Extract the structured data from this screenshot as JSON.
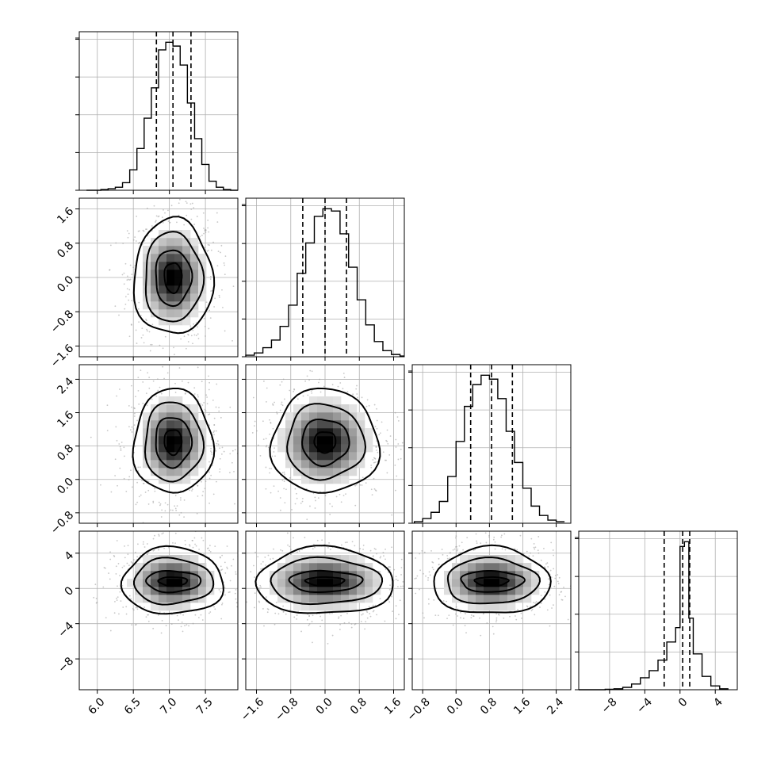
{
  "chart_data": {
    "type": "corner",
    "parameters": [
      {
        "range": [
          5.75,
          7.95
        ],
        "ticks": [
          6.0,
          6.5,
          7.0,
          7.5
        ],
        "tick_labels": [
          "6.0",
          "6.5",
          "7.0",
          "7.5"
        ],
        "hist_bins": [
          5.85,
          5.95,
          6.05,
          6.15,
          6.25,
          6.35,
          6.45,
          6.55,
          6.65,
          6.75,
          6.85,
          6.95,
          7.05,
          7.15,
          7.25,
          7.35,
          7.45,
          7.55,
          7.65,
          7.75,
          7.85,
          7.95
        ],
        "hist_counts": [
          0,
          0,
          1,
          2,
          4,
          10,
          27,
          55,
          95,
          135,
          185,
          195,
          190,
          165,
          115,
          68,
          34,
          12,
          4,
          1,
          0
        ],
        "quantiles": [
          6.82,
          7.05,
          7.3
        ]
      },
      {
        "range": [
          -1.85,
          1.85
        ],
        "ticks": [
          -1.6,
          -0.8,
          0.0,
          0.8,
          1.6
        ],
        "tick_labels": [
          "−1.6",
          "−0.8",
          "0.0",
          "0.8",
          "1.6"
        ],
        "hist_bins": [
          -1.85,
          -1.65,
          -1.45,
          -1.25,
          -1.05,
          -0.85,
          -0.65,
          -0.45,
          -0.25,
          -0.05,
          0.15,
          0.35,
          0.55,
          0.75,
          0.95,
          1.15,
          1.35,
          1.55,
          1.75,
          1.85
        ],
        "hist_counts": [
          2,
          5,
          12,
          22,
          40,
          68,
          110,
          150,
          185,
          195,
          192,
          162,
          118,
          75,
          42,
          20,
          8,
          3,
          1
        ],
        "quantiles": [
          -0.52,
          0.0,
          0.5
        ]
      },
      {
        "range": [
          -1.05,
          2.75
        ],
        "ticks": [
          -0.8,
          0.0,
          0.8,
          1.6,
          2.4
        ],
        "tick_labels": [
          "−0.8",
          "0.0",
          "0.8",
          "1.6",
          "2.4"
        ],
        "hist_bins": [
          -1.0,
          -0.8,
          -0.6,
          -0.4,
          -0.2,
          0.0,
          0.2,
          0.4,
          0.6,
          0.8,
          1.0,
          1.2,
          1.4,
          1.6,
          1.8,
          2.0,
          2.2,
          2.4,
          2.6
        ],
        "hist_counts": [
          2,
          6,
          14,
          28,
          60,
          105,
          150,
          178,
          190,
          185,
          160,
          118,
          78,
          45,
          22,
          10,
          4,
          2
        ],
        "quantiles": [
          0.35,
          0.85,
          1.35
        ]
      },
      {
        "range": [
          -11.5,
          6.5
        ],
        "ticks": [
          -8,
          -4,
          0,
          4
        ],
        "tick_labels": [
          "−8",
          "−4",
          "0",
          "4"
        ],
        "hist_bins": [
          -11.5,
          -10.5,
          -9.5,
          -8.5,
          -7.5,
          -6.5,
          -5.5,
          -4.5,
          -3.5,
          -2.5,
          -1.5,
          -0.5,
          0.0,
          0.5,
          1.0,
          1.5,
          2.5,
          3.5,
          4.5,
          5.5
        ],
        "hist_counts": [
          0,
          0,
          0,
          1,
          2,
          5,
          12,
          25,
          40,
          62,
          100,
          130,
          300,
          310,
          150,
          75,
          28,
          8,
          2
        ],
        "quantiles": [
          -1.8,
          0.3,
          1.1
        ]
      }
    ],
    "pairs": [
      {
        "x": 0,
        "y": 1,
        "center": [
          7.05,
          0.0
        ],
        "contours": [
          [
            0.12,
            0.35
          ],
          [
            0.25,
            0.65
          ],
          [
            0.4,
            1.05
          ],
          [
            0.55,
            1.35
          ]
        ]
      },
      {
        "x": 0,
        "y": 2,
        "center": [
          7.05,
          0.9
        ],
        "contours": [
          [
            0.12,
            0.3
          ],
          [
            0.25,
            0.6
          ],
          [
            0.4,
            0.95
          ],
          [
            0.55,
            1.25
          ]
        ]
      },
      {
        "x": 1,
        "y": 2,
        "center": [
          0.0,
          0.9
        ],
        "contours": [
          [
            0.25,
            0.25
          ],
          [
            0.55,
            0.55
          ],
          [
            0.9,
            0.9
          ],
          [
            1.25,
            1.25
          ]
        ]
      },
      {
        "x": 0,
        "y": 3,
        "center": [
          7.05,
          0.8
        ],
        "contours": [
          [
            0.2,
            0.5
          ],
          [
            0.38,
            1.2
          ],
          [
            0.55,
            2.6
          ],
          [
            0.7,
            3.8
          ]
        ]
      },
      {
        "x": 1,
        "y": 3,
        "center": [
          0.0,
          0.8
        ],
        "contours": [
          [
            0.45,
            0.5
          ],
          [
            0.85,
            1.2
          ],
          [
            1.3,
            2.6
          ],
          [
            1.6,
            3.8
          ]
        ]
      },
      {
        "x": 2,
        "y": 3,
        "center": [
          0.85,
          0.8
        ],
        "contours": [
          [
            0.4,
            0.5
          ],
          [
            0.75,
            1.2
          ],
          [
            1.1,
            2.6
          ],
          [
            1.4,
            3.8
          ]
        ]
      }
    ],
    "grid": true
  }
}
